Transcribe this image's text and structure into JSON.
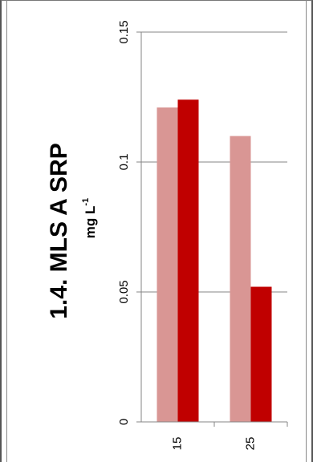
{
  "chart_data": {
    "type": "bar",
    "orientation": "rotated-90-ccw",
    "title": "1.4. MLS A SRP",
    "unit": "mg L",
    "unit_superscript": "-1",
    "categories": [
      "15",
      "25"
    ],
    "series": [
      {
        "color": "#d99694",
        "values": [
          0.121,
          0.11
        ]
      },
      {
        "color": "#c00000",
        "values": [
          0.124,
          0.052
        ]
      }
    ],
    "ylim": [
      0,
      0.15
    ],
    "yticks": [
      0,
      0.05,
      0.1,
      0.15
    ],
    "ytick_labels": [
      "0",
      "0.05",
      "0.1",
      "0.15"
    ],
    "grid": true,
    "legend": "none"
  }
}
